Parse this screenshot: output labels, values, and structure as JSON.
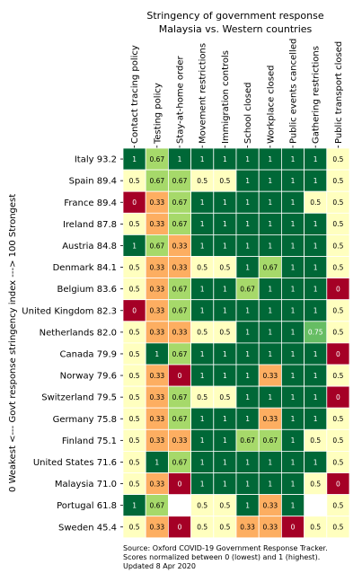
{
  "chart_data": {
    "type": "heatmap",
    "title": "Stringency of government response",
    "subtitle": "Malaysia vs. Western countries",
    "ylabel": "0 Weakest <--- Govt response stringency index ---> 100 Strongest",
    "columns": [
      "Contact tracing policy",
      "Testing policy",
      "Stay-at-home order",
      "Movement restrictions",
      "Immigration controls",
      "School closed",
      "Workplace closed",
      "Public events cancelled",
      "Gathering restrictions",
      "Public transport closed"
    ],
    "rows": [
      {
        "label": "Italy 93.2",
        "values": [
          1,
          0.67,
          1,
          1,
          1,
          1,
          1,
          1,
          1,
          0.5
        ]
      },
      {
        "label": "Spain 89.4",
        "values": [
          0.5,
          0.67,
          0.67,
          0.5,
          0.5,
          1,
          1,
          1,
          1,
          0.5
        ]
      },
      {
        "label": "France 89.4",
        "values": [
          0,
          0.33,
          0.67,
          1,
          1,
          1,
          1,
          1,
          0.5,
          0.5
        ]
      },
      {
        "label": "Ireland 87.8",
        "values": [
          0.5,
          0.33,
          0.67,
          1,
          1,
          1,
          1,
          1,
          1,
          0.5
        ]
      },
      {
        "label": "Austria 84.8",
        "values": [
          1,
          0.67,
          0.33,
          1,
          1,
          1,
          1,
          1,
          1,
          0.5
        ]
      },
      {
        "label": "Denmark 84.1",
        "values": [
          0.5,
          0.33,
          0.33,
          0.5,
          0.5,
          1,
          0.67,
          1,
          1,
          0.5
        ]
      },
      {
        "label": "Belgium 83.6",
        "values": [
          0.5,
          0.33,
          0.67,
          1,
          1,
          0.67,
          1,
          1,
          1,
          0
        ]
      },
      {
        "label": "United Kingdom 82.3",
        "values": [
          0,
          0.33,
          0.67,
          1,
          1,
          1,
          1,
          1,
          1,
          0.5
        ]
      },
      {
        "label": "Netherlands 82.0",
        "values": [
          0.5,
          0.33,
          0.33,
          0.5,
          0.5,
          1,
          1,
          1,
          0.75,
          0.5
        ]
      },
      {
        "label": "Canada 79.9",
        "values": [
          0.5,
          1,
          0.67,
          1,
          1,
          1,
          1,
          1,
          1,
          0
        ]
      },
      {
        "label": "Norway 79.6",
        "values": [
          0.5,
          0.33,
          0,
          1,
          1,
          1,
          0.33,
          1,
          1,
          0.5
        ]
      },
      {
        "label": "Switzerland 79.5",
        "values": [
          0.5,
          0.33,
          0.67,
          0.5,
          0.5,
          1,
          1,
          1,
          1,
          0
        ]
      },
      {
        "label": "Germany 75.8",
        "values": [
          0.5,
          0.33,
          0.67,
          1,
          1,
          1,
          0.33,
          1,
          1,
          0.5
        ]
      },
      {
        "label": "Finland 75.1",
        "values": [
          0.5,
          0.33,
          0.33,
          1,
          1,
          0.67,
          0.67,
          1,
          0.5,
          0.5
        ]
      },
      {
        "label": "United States 71.6",
        "values": [
          0.5,
          1,
          0.67,
          1,
          1,
          1,
          1,
          1,
          1,
          0.5
        ]
      },
      {
        "label": "Malaysia 71.0",
        "values": [
          0.5,
          0.33,
          0,
          1,
          1,
          1,
          1,
          1,
          0.5,
          0
        ]
      },
      {
        "label": "Portugal 61.8",
        "values": [
          1,
          0.67,
          null,
          0.5,
          0.5,
          1,
          0.33,
          1,
          null,
          0.5
        ]
      },
      {
        "label": "Sweden 45.4",
        "values": [
          0.5,
          0.33,
          0,
          0.5,
          0.5,
          0.33,
          0.33,
          0,
          0.5,
          0.5
        ]
      }
    ],
    "color_scale": {
      "0": "#a50026",
      "0.33": "#fdae61",
      "0.5": "#ffffbf",
      "0.67": "#a6d96a",
      "0.75": "#66bd63",
      "1": "#006837"
    },
    "footnote": [
      "Source: Oxford COVID-19 Government Response Tracker.",
      "Scores normalized between 0 (lowest) and 1 (highest).",
      "Updated 8 Apr 2020"
    ]
  }
}
